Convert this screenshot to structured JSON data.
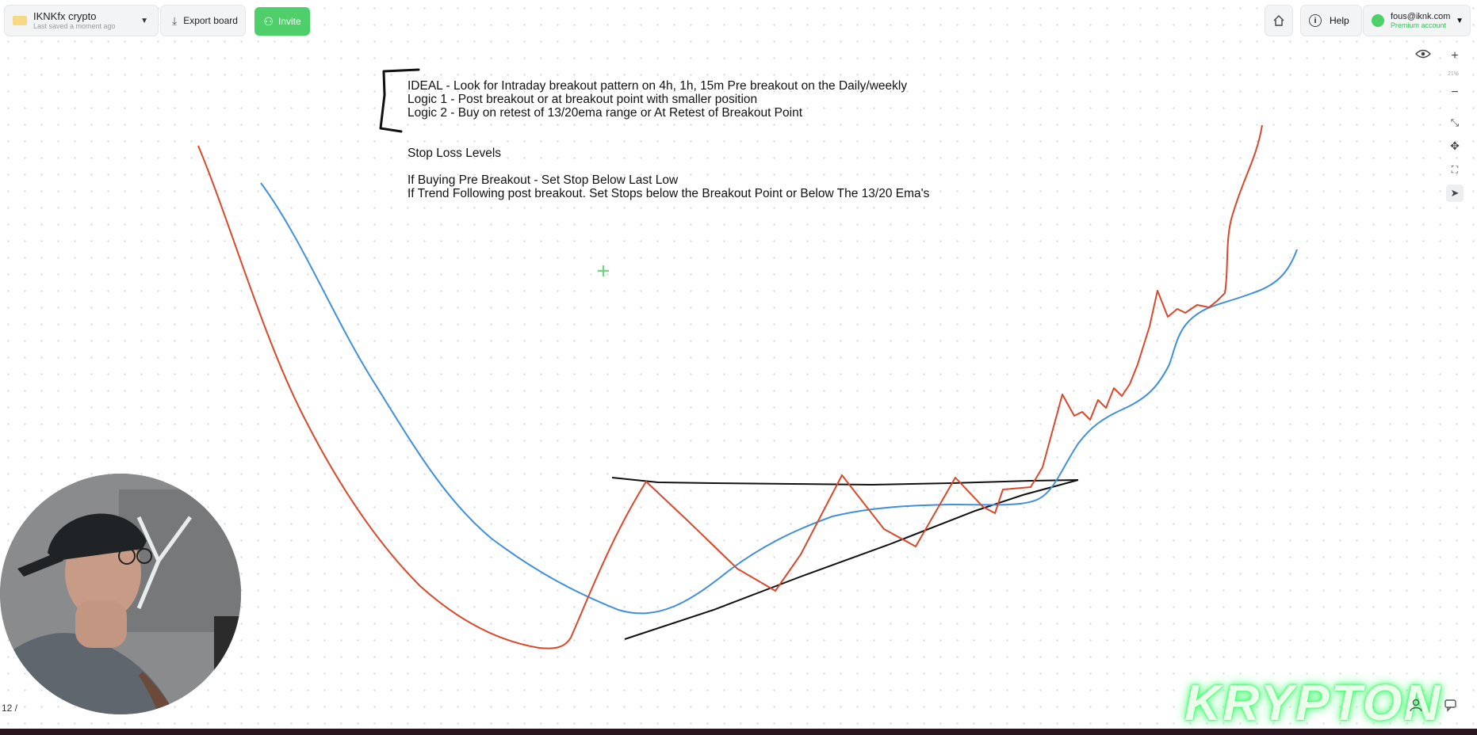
{
  "header": {
    "board_title": "IKNKfx crypto",
    "board_subtitle": "Last saved a moment ago",
    "export_label": "Export board",
    "invite_label": "Invite",
    "help_label": "Help",
    "account_email": "fous@iknk.com",
    "account_plan": "Premium account"
  },
  "toolbar": {
    "zoom_level": "21%"
  },
  "notes": {
    "line1": "IDEAL - Look for  Intraday breakout pattern on 4h, 1h, 15m Pre breakout on the Daily/weekly",
    "line2": "Logic 1 - Post breakout or at breakout point with smaller position",
    "line3": "Logic 2 - Buy on retest of 13/20ema range or At Retest of Breakout Point",
    "stop_title": "Stop Loss Levels",
    "stop_line1": "If Buying Pre Breakout - Set Stop Below Last Low",
    "stop_line2": "If Trend Following post breakout. Set Stops below the Breakout Point or Below The 13/20 Ema's"
  },
  "footer": {
    "page_counter": "12 /",
    "logo_text": "KRYPTON"
  },
  "colors": {
    "price_line": "#d9482b",
    "ema_line": "#3f8fdc",
    "trend_lines": "#111111",
    "accent_green": "#4fcf6a"
  },
  "icons": [
    "chevron-down-icon",
    "download-icon",
    "add-user-icon",
    "home-icon",
    "info-icon",
    "user-icon",
    "eye-icon",
    "plus-icon",
    "minus-icon",
    "collapse-icon",
    "move-icon",
    "fit-screen-icon",
    "pointer-icon",
    "person-icon",
    "comment-icon"
  ]
}
